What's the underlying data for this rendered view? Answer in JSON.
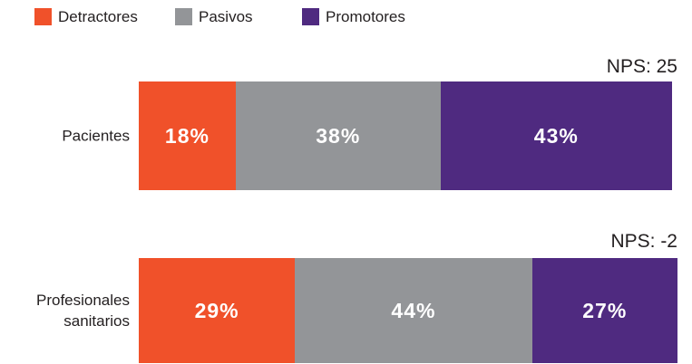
{
  "chart_data": {
    "type": "bar",
    "orientation": "horizontal",
    "stacked": true,
    "categories": [
      "Pacientes",
      "Profesionales sanitarios"
    ],
    "series": [
      {
        "name": "Detractores",
        "color": "#f0512a",
        "values": [
          18,
          29
        ],
        "value_labels": [
          "18%",
          "29%"
        ]
      },
      {
        "name": "Pasivos",
        "color": "#939598",
        "values": [
          38,
          44
        ],
        "value_labels": [
          "38%",
          "44%"
        ]
      },
      {
        "name": "Promotores",
        "color": "#4f2a80",
        "values": [
          43,
          27
        ],
        "value_labels": [
          "43%",
          "27%"
        ]
      }
    ],
    "xlim": [
      0,
      100
    ],
    "annotations": [
      "NPS: 25",
      "NPS: -2"
    ],
    "legend": "top-left"
  }
}
